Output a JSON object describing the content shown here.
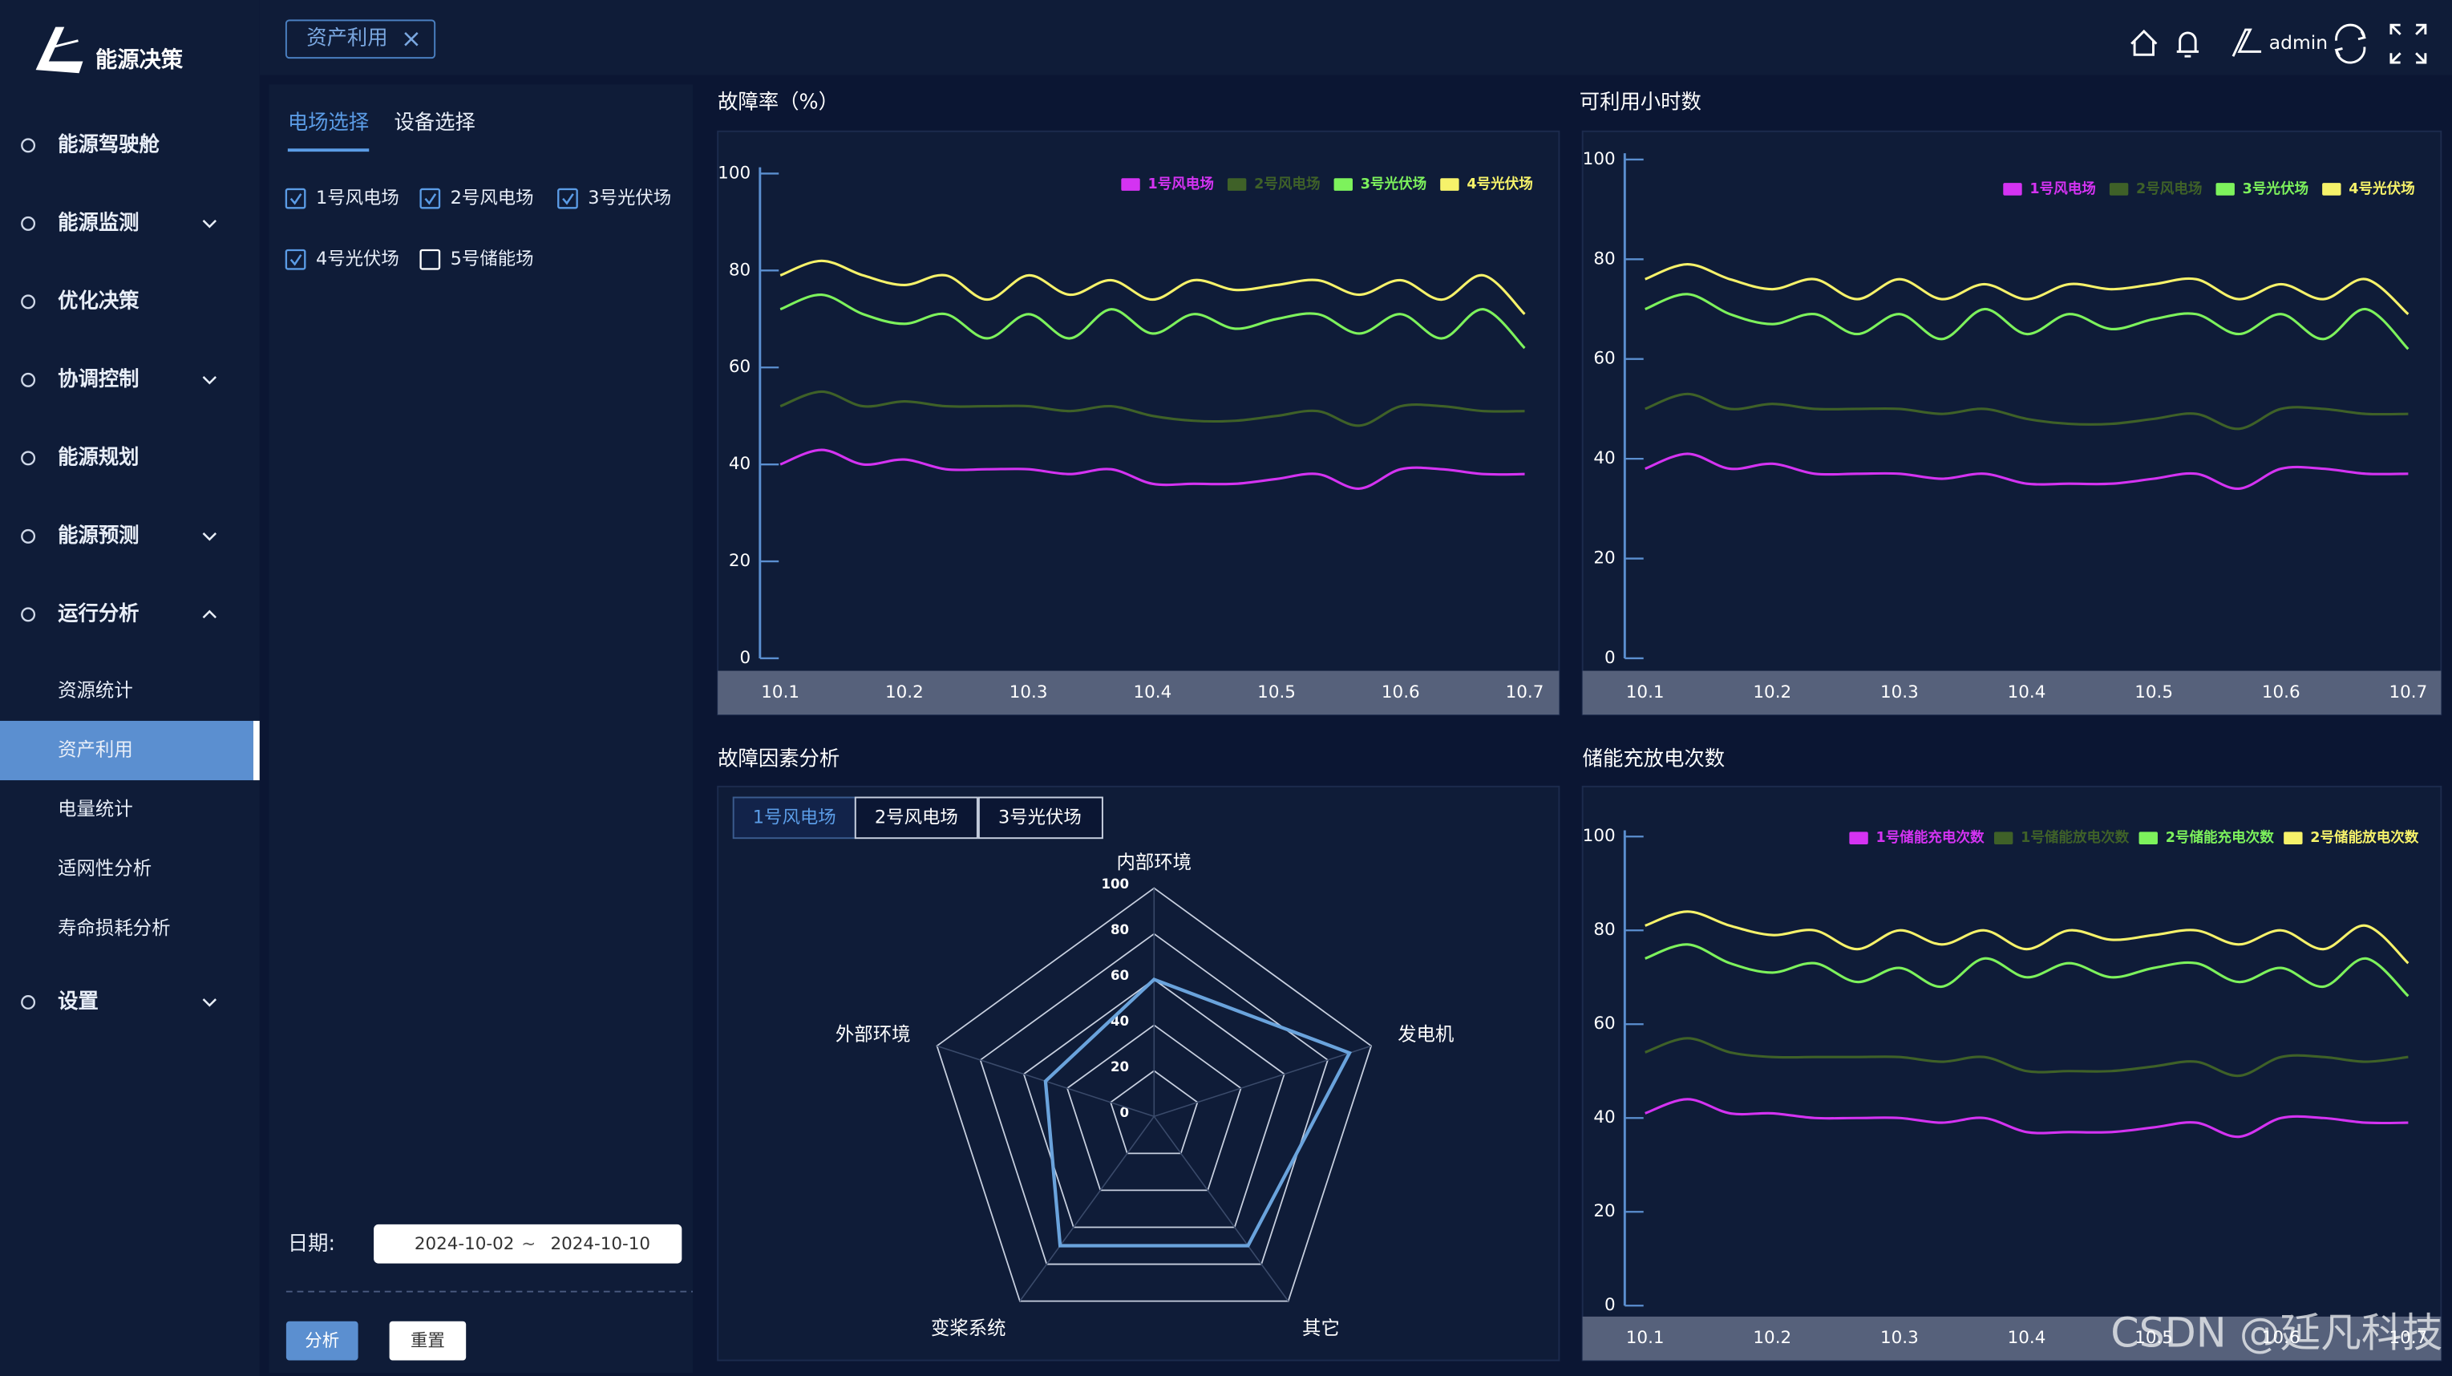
{
  "sidebar": {
    "logo": "能源决策",
    "items": [
      {
        "label": "能源驾驶舱"
      },
      {
        "label": "能源监测",
        "arrow": "down"
      },
      {
        "label": "优化决策"
      },
      {
        "label": "协调控制",
        "arrow": "down"
      },
      {
        "label": "能源规划"
      },
      {
        "label": "能源预测",
        "arrow": "down"
      },
      {
        "label": "运行分析",
        "arrow": "up"
      },
      {
        "label": "设置",
        "arrow": "down"
      }
    ],
    "submenu": {
      "parent": 6,
      "items": [
        "资源统计",
        "资产利用",
        "电量统计",
        "适网性分析",
        "寿命损耗分析"
      ],
      "active": 1
    }
  },
  "header": {
    "tab": "资产利用",
    "user": "admin"
  },
  "filter": {
    "tabs": [
      "电场选择",
      "设备选择"
    ],
    "active_tab": 0,
    "options": [
      {
        "label": "1号风电场",
        "checked": true
      },
      {
        "label": "2号风电场",
        "checked": true
      },
      {
        "label": "3号光伏场",
        "checked": true
      },
      {
        "label": "4号光伏场",
        "checked": true
      },
      {
        "label": "5号储能场",
        "checked": false
      }
    ],
    "date_label": "日期:",
    "date_start": "2024-10-02",
    "date_sep": "~",
    "date_end": "2024-10-10",
    "buttons": [
      "分析",
      "重置"
    ]
  },
  "chart_data": [
    {
      "type": "line",
      "title": "故障率（%）",
      "categories": [
        "10.1",
        null,
        null,
        "10.2",
        null,
        null,
        "10.3",
        null,
        null,
        "10.4",
        null,
        null,
        "10.5",
        null,
        null,
        "10.6",
        null,
        null,
        "10.7"
      ],
      "series": [
        {
          "name": "1号风电场",
          "color": "#d433f2",
          "values": [
            40,
            43,
            40,
            41,
            39,
            39,
            39,
            38,
            39,
            36,
            36,
            36,
            37,
            38,
            35,
            39,
            39,
            38,
            38
          ]
        },
        {
          "name": "2号风电场",
          "color": "#3f6128",
          "values": [
            52,
            55,
            52,
            53,
            52,
            52,
            52,
            51,
            52,
            50,
            49,
            49,
            50,
            51,
            48,
            52,
            52,
            51,
            51
          ]
        },
        {
          "name": "3号光伏场",
          "color": "#7df25c",
          "values": [
            72,
            75,
            71,
            69,
            71,
            66,
            71,
            66,
            72,
            67,
            71,
            68,
            70,
            71,
            67,
            71,
            66,
            72,
            64
          ]
        },
        {
          "name": "4号光伏场",
          "color": "#f6f26a",
          "values": [
            79,
            82,
            79,
            77,
            79,
            74,
            79,
            75,
            78,
            74,
            78,
            76,
            77,
            78,
            75,
            78,
            74,
            79,
            71
          ]
        }
      ],
      "ylim": [
        0,
        100
      ],
      "yticks": [
        0,
        20,
        40,
        60,
        80,
        100
      ],
      "legend": "top-right"
    },
    {
      "type": "line",
      "title": "可利用小时数",
      "categories": [
        "10.1",
        null,
        null,
        "10.2",
        null,
        null,
        "10.3",
        null,
        null,
        "10.4",
        null,
        null,
        "10.5",
        null,
        null,
        "10.6",
        null,
        null,
        "10.7"
      ],
      "series": [
        {
          "name": "1号风电场",
          "color": "#d433f2",
          "values": [
            38,
            41,
            38,
            39,
            37,
            37,
            37,
            36,
            37,
            35,
            35,
            35,
            36,
            37,
            34,
            38,
            38,
            37,
            37
          ]
        },
        {
          "name": "2号风电场",
          "color": "#3f6128",
          "values": [
            50,
            53,
            50,
            51,
            50,
            50,
            50,
            49,
            50,
            48,
            47,
            47,
            48,
            49,
            46,
            50,
            50,
            49,
            49
          ]
        },
        {
          "name": "3号光伏场",
          "color": "#7df25c",
          "values": [
            70,
            73,
            69,
            67,
            69,
            65,
            69,
            64,
            70,
            65,
            69,
            66,
            68,
            69,
            65,
            69,
            64,
            70,
            62
          ]
        },
        {
          "name": "4号光伏场",
          "color": "#f6f26a",
          "values": [
            76,
            79,
            76,
            74,
            76,
            72,
            76,
            72,
            75,
            72,
            75,
            74,
            75,
            76,
            72,
            75,
            72,
            76,
            69
          ]
        }
      ],
      "ylim": [
        0,
        100
      ],
      "yticks": [
        0,
        20,
        40,
        60,
        80,
        100
      ],
      "legend": "top-right"
    },
    {
      "type": "radar",
      "title": "故障因素分析",
      "tabs": [
        "1号风电场",
        "2号风电场",
        "3号光伏场"
      ],
      "active_tab": 0,
      "indicators": [
        "内部环境",
        "发电机",
        "其它",
        "变桨系统",
        "外部环境"
      ],
      "values": [
        60,
        90,
        70,
        70,
        50
      ],
      "rlim": [
        0,
        100
      ],
      "rticks": [
        0,
        20,
        40,
        60,
        80,
        100
      ],
      "color": "#6aa3dc"
    },
    {
      "type": "line",
      "title": "储能充放电次数",
      "categories": [
        "10.1",
        null,
        null,
        "10.2",
        null,
        null,
        "10.3",
        null,
        null,
        "10.4",
        null,
        null,
        "10.5",
        null,
        null,
        "10.6",
        null,
        null,
        "10.7"
      ],
      "series": [
        {
          "name": "1号储能充电次数",
          "color": "#d433f2",
          "values": [
            41,
            44,
            41,
            41,
            40,
            40,
            40,
            39,
            40,
            37,
            37,
            37,
            38,
            39,
            36,
            40,
            40,
            39,
            39
          ]
        },
        {
          "name": "1号储能放电次数",
          "color": "#3f6128",
          "values": [
            54,
            57,
            54,
            53,
            53,
            53,
            53,
            52,
            53,
            50,
            50,
            50,
            51,
            52,
            49,
            53,
            53,
            52,
            53
          ]
        },
        {
          "name": "2号储能充电次数",
          "color": "#7df25c",
          "values": [
            74,
            77,
            73,
            71,
            73,
            69,
            72,
            68,
            74,
            70,
            73,
            70,
            72,
            73,
            69,
            72,
            68,
            74,
            66
          ]
        },
        {
          "name": "2号储能放电次数",
          "color": "#f6f26a",
          "values": [
            81,
            84,
            81,
            79,
            80,
            76,
            80,
            77,
            80,
            76,
            80,
            78,
            79,
            80,
            77,
            80,
            76,
            81,
            73
          ]
        }
      ],
      "ylim": [
        0,
        100
      ],
      "yticks": [
        0,
        20,
        40,
        60,
        80,
        100
      ],
      "legend": "top-right"
    }
  ],
  "watermark": "CSDN @延凡科技"
}
